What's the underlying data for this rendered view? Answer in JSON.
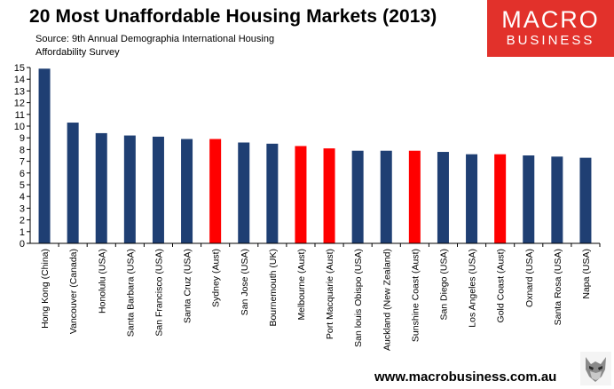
{
  "title": "20 Most Unaffordable Housing Markets (2013)",
  "source_line1": "Source: 9th Annual Demographia International Housing",
  "source_line2": "Affordability Survey",
  "logo": {
    "line1": "MACRO",
    "line2": "BUSINESS",
    "color": "#e2312b"
  },
  "footer_url": "www.macrobusiness.com.au",
  "colors": {
    "navy": "#1f3f73",
    "highlight": "#ff0000"
  },
  "chart_data": {
    "type": "bar",
    "title": "20 Most Unaffordable Housing Markets (2013)",
    "xlabel": "",
    "ylabel": "",
    "ylim": [
      0,
      15
    ],
    "yticks": [
      0,
      1,
      2,
      3,
      4,
      5,
      6,
      7,
      8,
      9,
      10,
      11,
      12,
      13,
      14,
      15
    ],
    "categories": [
      "Hong Kong (China)",
      "Vancouver (Canada)",
      "Honolulu (USA)",
      "Santa Barbara (USA)",
      "San Francisco (USA)",
      "Santa Cruz (USA)",
      "Sydney (Aust)",
      "San Jose (USA)",
      "Bournemouth (UK)",
      "Melbourne (Aust)",
      "Port Macquarie (Aust)",
      "San louis Obispo (USA)",
      "Auckland (New Zealand)",
      "Sunshine Coast (Aust)",
      "San Diego (USA)",
      "Los Angeles (USA)",
      "Gold Coast (Aust)",
      "Oxnard (USA)",
      "Santa Rosa (USA)",
      "Napa (USA)"
    ],
    "values": [
      14.9,
      10.3,
      9.4,
      9.2,
      9.1,
      8.9,
      8.9,
      8.6,
      8.5,
      8.3,
      8.1,
      7.9,
      7.9,
      7.9,
      7.8,
      7.6,
      7.6,
      7.5,
      7.4,
      7.3
    ],
    "highlight": [
      false,
      false,
      false,
      false,
      false,
      false,
      true,
      false,
      false,
      true,
      true,
      false,
      false,
      true,
      false,
      false,
      true,
      false,
      false,
      false
    ]
  }
}
